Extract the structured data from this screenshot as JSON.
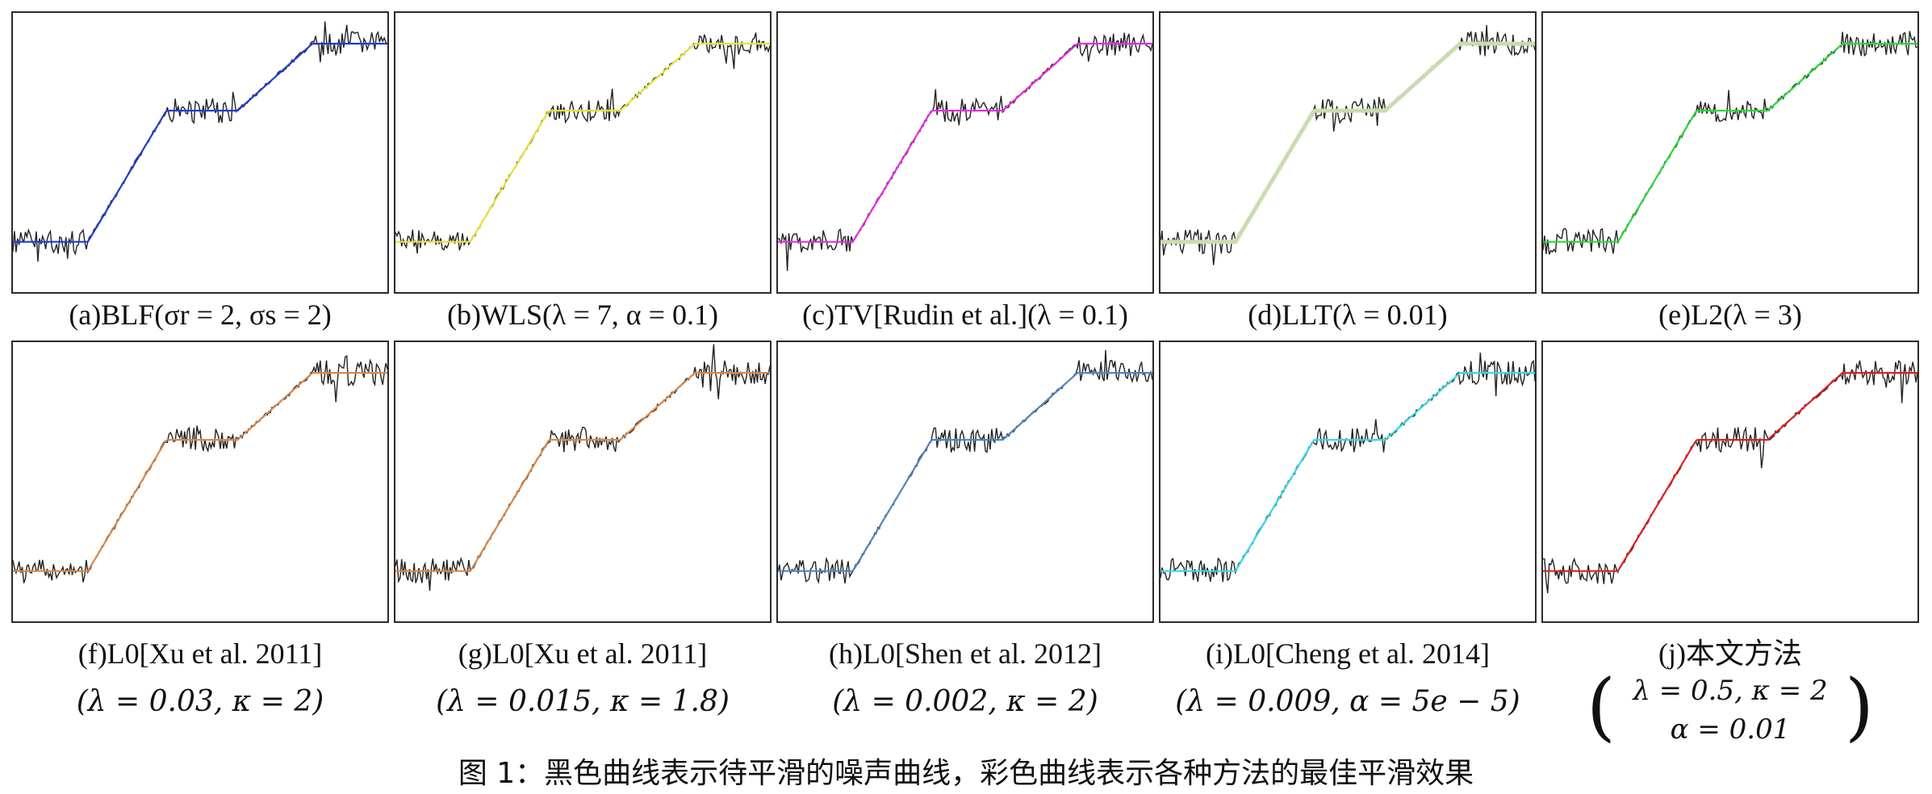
{
  "panels": [
    {
      "id": "a",
      "color": "#1f3fd0",
      "caption": "(a)BLF(σr = 2, σs = 2)",
      "param": ""
    },
    {
      "id": "b",
      "color": "#e8e235",
      "caption": "(b)WLS(λ = 7, α = 0.1)",
      "param": ""
    },
    {
      "id": "c",
      "color": "#e22fe0",
      "caption": "(c)TV[Rudin et al.](λ = 0.1)",
      "param": ""
    },
    {
      "id": "d",
      "color": "#c9dcb0",
      "caption": "(d)LLT(λ = 0.01)",
      "param": ""
    },
    {
      "id": "e",
      "color": "#2fd63a",
      "caption": "(e)L2(λ = 3)",
      "param": ""
    },
    {
      "id": "f",
      "color": "#d9884a",
      "caption": "(f)L0[Xu et al. 2011]",
      "param": "(λ = 0.03, κ = 2)"
    },
    {
      "id": "g",
      "color": "#d9884a",
      "caption": "(g)L0[Xu et al. 2011]",
      "param": "(λ = 0.015, κ = 1.8)"
    },
    {
      "id": "h",
      "color": "#4f86c0",
      "caption": "(h)L0[Shen et al. 2012]",
      "param": "(λ = 0.002, κ = 2)"
    },
    {
      "id": "i",
      "color": "#35d8e8",
      "caption": "(i)L0[Cheng et al. 2014]",
      "param": "(λ = 0.009, α = 5e − 5)"
    },
    {
      "id": "j",
      "color": "#e0201f",
      "caption": "(j)本文方法",
      "param1": "λ = 0.5, κ = 2",
      "param2": "α = 0.01"
    }
  ],
  "figure_caption": "图 1：黑色曲线表示待平滑的噪声曲线，彩色曲线表示各种方法的最佳平滑效果"
}
